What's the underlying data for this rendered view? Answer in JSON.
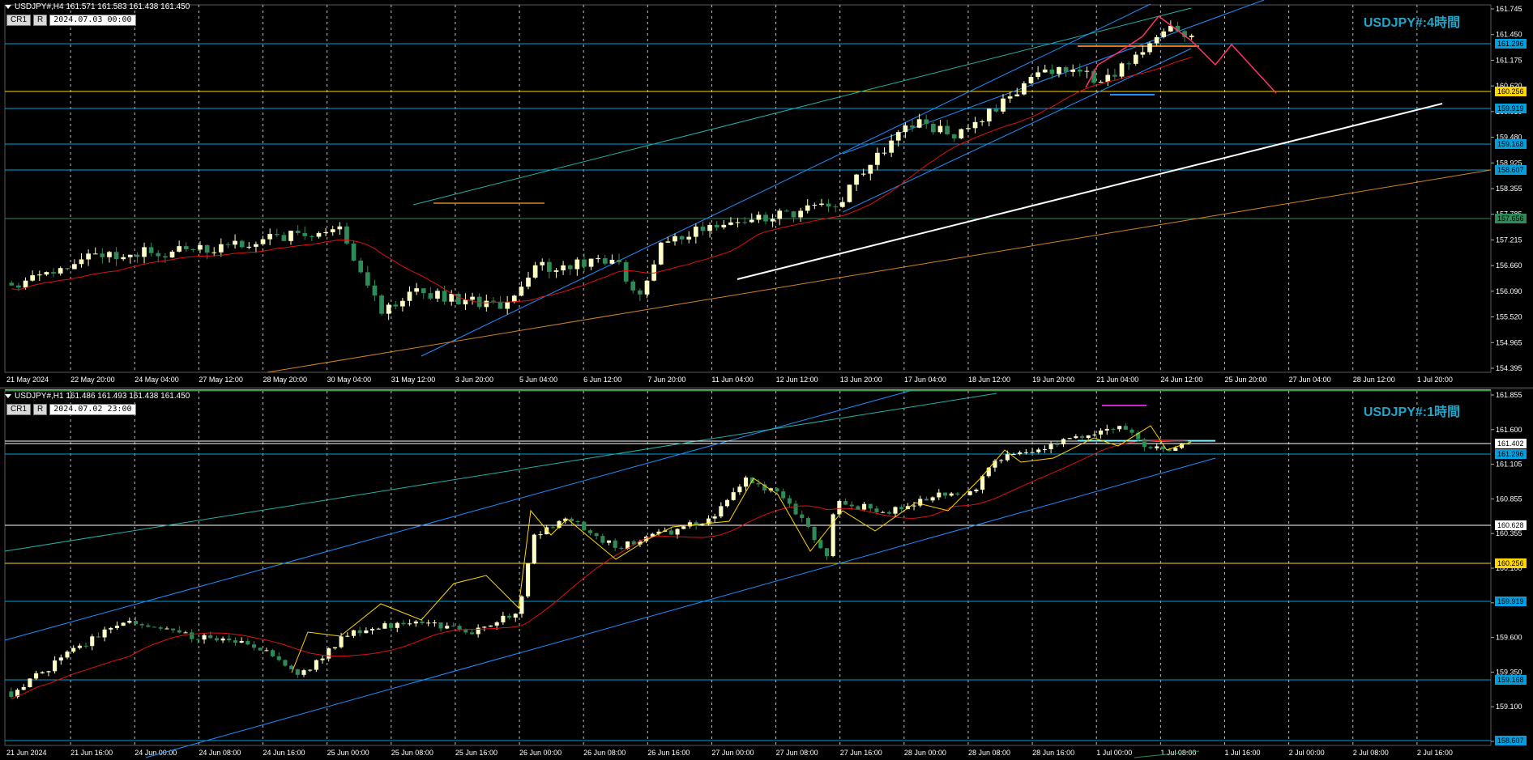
{
  "top": {
    "header": "USDJPY#,H4  161.571 161.583 161.438 161.450",
    "cr_label": "CR1",
    "r_label": "R",
    "date": "2024.07.03 00:00",
    "title": "USDJPY#:4時間",
    "price_ticks": [
      "161.745",
      "161.450",
      "161.175",
      "160.620",
      "160.050",
      "159.480",
      "158.925",
      "158.355",
      "157.785",
      "157.215",
      "156.660",
      "156.090",
      "155.520",
      "154.965",
      "154.395"
    ],
    "time_ticks": [
      "21 May 2024",
      "22 May 20:00",
      "24 May 04:00",
      "27 May 12:00",
      "28 May 20:00",
      "30 May 04:00",
      "31 May 12:00",
      "3 Jun 20:00",
      "5 Jun 04:00",
      "6 Jun 12:00",
      "7 Jun 20:00",
      "11 Jun 04:00",
      "12 Jun 12:00",
      "13 Jun 20:00",
      "17 Jun 04:00",
      "18 Jun 12:00",
      "19 Jun 20:00",
      "21 Jun 04:00",
      "24 Jun 12:00",
      "25 Jun 20:00",
      "27 Jun 04:00",
      "28 Jun 12:00",
      "1 Jul 20:00"
    ],
    "level_tags": [
      {
        "text": "161.296",
        "bg": "#00a0e0",
        "fg": "#000000"
      },
      {
        "text": "160.256",
        "bg": "#ffd700",
        "fg": "#000000"
      },
      {
        "text": "159.919",
        "bg": "#00a0e0",
        "fg": "#000000"
      },
      {
        "text": "159.168",
        "bg": "#00a0e0",
        "fg": "#000000"
      },
      {
        "text": "158.607",
        "bg": "#00a0e0",
        "fg": "#000000"
      },
      {
        "text": "157.656",
        "bg": "#2e8b57",
        "fg": "#000000"
      }
    ]
  },
  "bottom": {
    "header": "USDJPY#,H1  161.486 161.493 161.438 161.450",
    "cr_label": "CR1",
    "r_label": "R",
    "date": "2024.07.02 23:00",
    "title": "USDJPY#:1時間",
    "price_ticks": [
      "161.855",
      "161.600",
      "161.105",
      "160.855",
      "160.355",
      "160.100",
      "159.850",
      "159.600",
      "159.350",
      "159.100",
      "158.850"
    ],
    "time_ticks": [
      "21 Jun 2024",
      "21 Jun 16:00",
      "24 Jun 00:00",
      "24 Jun 08:00",
      "24 Jun 16:00",
      "25 Jun 00:00",
      "25 Jun 08:00",
      "25 Jun 16:00",
      "26 Jun 00:00",
      "26 Jun 08:00",
      "26 Jun 16:00",
      "27 Jun 00:00",
      "27 Jun 08:00",
      "27 Jun 16:00",
      "28 Jun 00:00",
      "28 Jun 08:00",
      "28 Jun 16:00",
      "1 Jul 00:00",
      "1 Jul 08:00",
      "1 Jul 16:00",
      "2 Jul 00:00",
      "2 Jul 08:00",
      "2 Jul 16:00"
    ],
    "level_tags": [
      {
        "text": "161.402",
        "bg": "#ffffff",
        "fg": "#000000"
      },
      {
        "text": "161.296",
        "bg": "#00a0e0",
        "fg": "#000000"
      },
      {
        "text": "160.628",
        "bg": "#ffffff",
        "fg": "#000000"
      },
      {
        "text": "160.256",
        "bg": "#ffd700",
        "fg": "#000000"
      },
      {
        "text": "159.919",
        "bg": "#00a0e0",
        "fg": "#000000"
      },
      {
        "text": "159.168",
        "bg": "#00a0e0",
        "fg": "#000000"
      },
      {
        "text": "158.607",
        "bg": "#00a0e0",
        "fg": "#000000"
      }
    ]
  },
  "colors": {
    "accent": "#1fa6c9",
    "bull_candle": "#ffffc8",
    "bear_candle": "#2e8b57",
    "ma": "#e01010",
    "zigzag": "#ffd700",
    "trend": "#1e90ff",
    "forecast": "#ff3366"
  }
}
